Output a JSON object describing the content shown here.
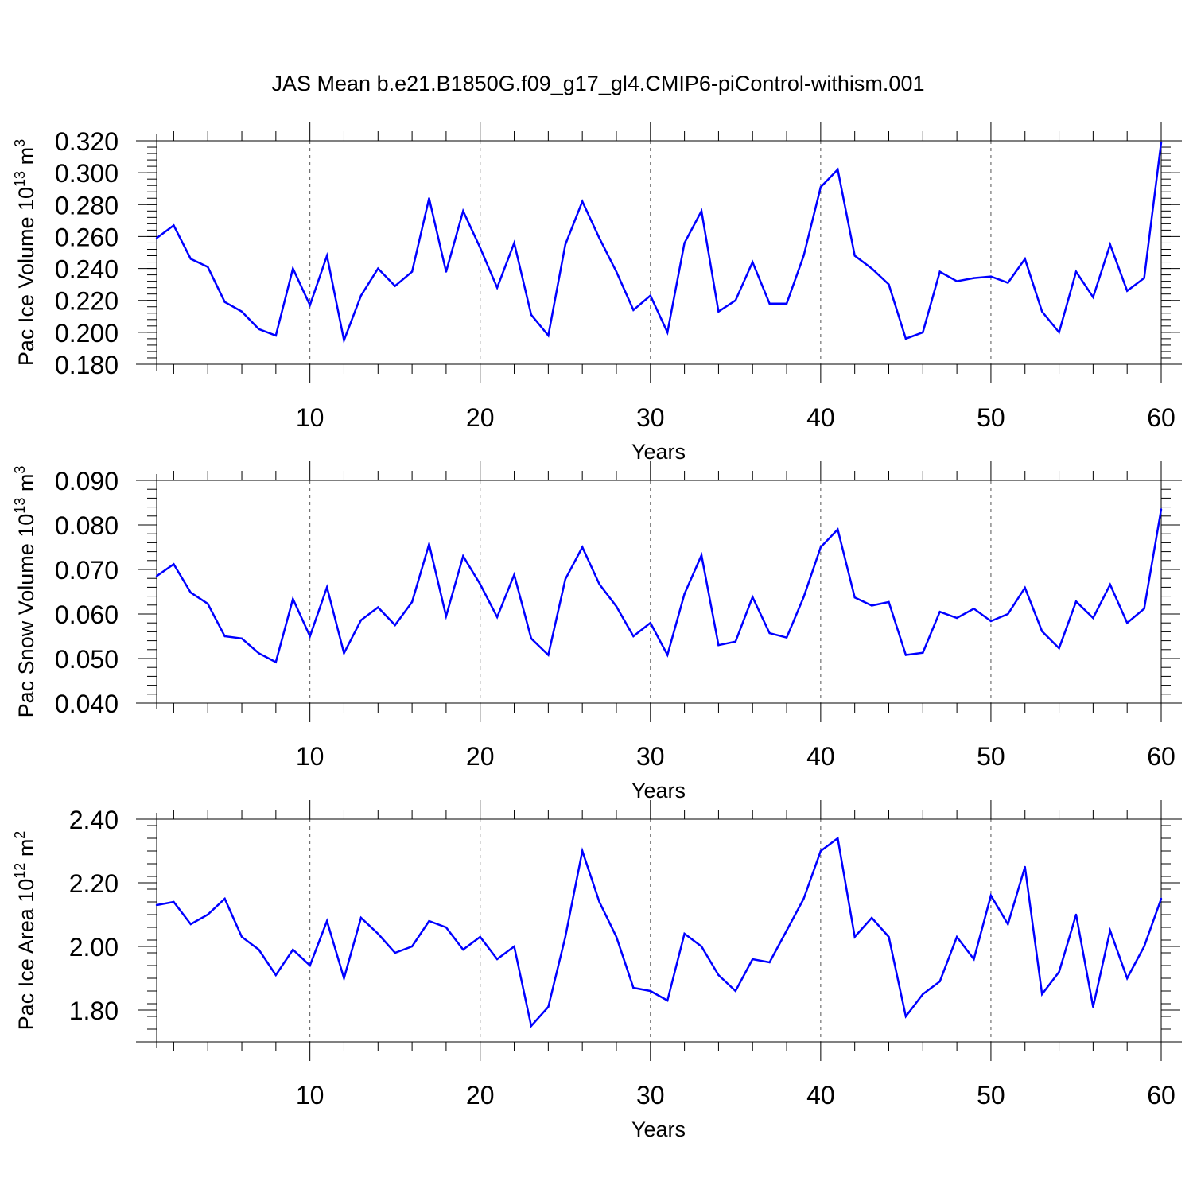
{
  "title": "JAS Mean b.e21.B1850G.f09_g17_gl4.CMIP6-piControl-withism.001",
  "colors": {
    "series": "#0000ff",
    "axis": "#000000",
    "grid": "#555555"
  },
  "chart_data": [
    {
      "type": "line",
      "xlabel": "Years",
      "ylabel": {
        "base": "Pac Ice Volume 10",
        "exp": "13",
        "unit": " m",
        "unit_exp": "3"
      },
      "xlim": [
        1,
        60
      ],
      "ylim": [
        0.18,
        0.32
      ],
      "xticks": [
        10,
        20,
        30,
        40,
        50,
        60
      ],
      "yticks": [
        "0.180",
        "0.200",
        "0.220",
        "0.240",
        "0.260",
        "0.280",
        "0.300",
        "0.320"
      ],
      "grid": "dashed vertical lines at labeled x ticks",
      "x": [
        1,
        2,
        3,
        4,
        5,
        6,
        7,
        8,
        9,
        10,
        11,
        12,
        13,
        14,
        15,
        16,
        17,
        18,
        19,
        20,
        21,
        22,
        23,
        24,
        25,
        26,
        27,
        28,
        29,
        30,
        31,
        32,
        33,
        34,
        35,
        36,
        37,
        38,
        39,
        40,
        41,
        42,
        43,
        44,
        45,
        46,
        47,
        48,
        49,
        50,
        51,
        52,
        53,
        54,
        55,
        56,
        57,
        58,
        59,
        60
      ],
      "values": [
        0.259,
        0.267,
        0.246,
        0.241,
        0.219,
        0.213,
        0.202,
        0.198,
        0.24,
        0.217,
        0.248,
        0.195,
        0.223,
        0.24,
        0.229,
        0.238,
        0.284,
        0.238,
        0.276,
        0.253,
        0.228,
        0.256,
        0.211,
        0.198,
        0.255,
        0.282,
        0.259,
        0.238,
        0.214,
        0.223,
        0.2,
        0.256,
        0.276,
        0.213,
        0.22,
        0.244,
        0.218,
        0.218,
        0.248,
        0.291,
        0.302,
        0.248,
        0.24,
        0.23,
        0.196,
        0.2,
        0.238,
        0.232,
        0.234,
        0.235,
        0.231,
        0.246,
        0.213,
        0.2,
        0.238,
        0.222,
        0.255,
        0.226,
        0.234,
        0.319
      ]
    },
    {
      "type": "line",
      "xlabel": "Years",
      "ylabel": {
        "base": "Pac Snow Volume 10",
        "exp": "13",
        "unit": " m",
        "unit_exp": "3"
      },
      "xlim": [
        1,
        60
      ],
      "ylim": [
        0.04,
        0.09
      ],
      "xticks": [
        10,
        20,
        30,
        40,
        50,
        60
      ],
      "yticks": [
        "0.040",
        "0.050",
        "0.060",
        "0.070",
        "0.080",
        "0.090"
      ],
      "grid": "dashed vertical lines at labeled x ticks",
      "x": [
        1,
        2,
        3,
        4,
        5,
        6,
        7,
        8,
        9,
        10,
        11,
        12,
        13,
        14,
        15,
        16,
        17,
        18,
        19,
        20,
        21,
        22,
        23,
        24,
        25,
        26,
        27,
        28,
        29,
        30,
        31,
        32,
        33,
        34,
        35,
        36,
        37,
        38,
        39,
        40,
        41,
        42,
        43,
        44,
        45,
        46,
        47,
        48,
        49,
        50,
        51,
        52,
        53,
        54,
        55,
        56,
        57,
        58,
        59,
        60
      ],
      "values": [
        0.0685,
        0.0712,
        0.0648,
        0.0623,
        0.055,
        0.0545,
        0.0512,
        0.0492,
        0.0634,
        0.055,
        0.066,
        0.0512,
        0.0586,
        0.0615,
        0.0575,
        0.0627,
        0.0757,
        0.0595,
        0.073,
        0.0667,
        0.0593,
        0.0688,
        0.0545,
        0.0508,
        0.0678,
        0.075,
        0.0667,
        0.0617,
        0.055,
        0.058,
        0.0508,
        0.0645,
        0.0732,
        0.053,
        0.0538,
        0.0638,
        0.0557,
        0.0547,
        0.0638,
        0.075,
        0.079,
        0.0637,
        0.0619,
        0.0627,
        0.0508,
        0.0513,
        0.0605,
        0.0591,
        0.0612,
        0.0584,
        0.06,
        0.0659,
        0.0561,
        0.0523,
        0.0628,
        0.0591,
        0.0666,
        0.058,
        0.0612,
        0.0835
      ]
    },
    {
      "type": "line",
      "xlabel": "Years",
      "ylabel": {
        "base": "Pac Ice Area 10",
        "exp": "12",
        "unit": " m",
        "unit_exp": "2"
      },
      "xlim": [
        1,
        60
      ],
      "ylim": [
        1.7,
        2.4
      ],
      "xticks": [
        10,
        20,
        30,
        40,
        50,
        60
      ],
      "yticks": [
        "1.80",
        "2.00",
        "2.20",
        "2.40"
      ],
      "grid": "dashed vertical lines at labeled x ticks",
      "x": [
        1,
        2,
        3,
        4,
        5,
        6,
        7,
        8,
        9,
        10,
        11,
        12,
        13,
        14,
        15,
        16,
        17,
        18,
        19,
        20,
        21,
        22,
        23,
        24,
        25,
        26,
        27,
        28,
        29,
        30,
        31,
        32,
        33,
        34,
        35,
        36,
        37,
        38,
        39,
        40,
        41,
        42,
        43,
        44,
        45,
        46,
        47,
        48,
        49,
        50,
        51,
        52,
        53,
        54,
        55,
        56,
        57,
        58,
        59,
        60
      ],
      "values": [
        2.13,
        2.14,
        2.07,
        2.1,
        2.15,
        2.03,
        1.99,
        1.91,
        1.99,
        1.94,
        2.08,
        1.9,
        2.09,
        2.04,
        1.98,
        2.0,
        2.08,
        2.06,
        1.99,
        2.03,
        1.96,
        2.0,
        1.75,
        1.81,
        2.03,
        2.3,
        2.14,
        2.03,
        1.87,
        1.86,
        1.83,
        2.04,
        2.0,
        1.91,
        1.86,
        1.96,
        1.95,
        2.05,
        2.15,
        2.3,
        2.34,
        2.03,
        2.09,
        2.03,
        1.78,
        1.85,
        1.89,
        2.03,
        1.96,
        2.16,
        2.07,
        2.25,
        1.85,
        1.92,
        2.1,
        1.81,
        2.05,
        1.9,
        2.0,
        2.15
      ]
    }
  ]
}
